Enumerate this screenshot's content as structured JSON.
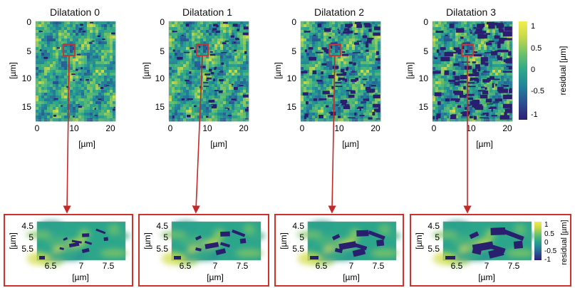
{
  "figure": {
    "colorbar_label": "residual [µm]",
    "colors": {
      "zoom_box": "#d0312d",
      "arrow": "#c62828",
      "colormap": [
        "#2d1e74",
        "#2c4f91",
        "#23839a",
        "#2ca68b",
        "#6cc16b",
        "#c7d84a",
        "#f2ec4f"
      ]
    }
  },
  "chart_data": [
    {
      "type": "heatmap",
      "panel": "overview",
      "title": "Dilatation 0",
      "xlabel": "[µm]",
      "ylabel": "[µm]",
      "xlim": [
        0,
        22
      ],
      "ylim": [
        17,
        0
      ],
      "xticks": [
        "0",
        "10",
        "20"
      ],
      "yticks": [
        "0",
        "5",
        "10",
        "15"
      ],
      "clim": [
        -1,
        1
      ],
      "zoom_box": {
        "x": [
          6.3,
          7.9
        ],
        "y": [
          4.4,
          6.0
        ]
      },
      "mask_density": 0.05
    },
    {
      "type": "heatmap",
      "panel": "overview",
      "title": "Dilatation 1",
      "xlabel": "[µm]",
      "ylabel": "[µm]",
      "xlim": [
        0,
        22
      ],
      "ylim": [
        17,
        0
      ],
      "xticks": [
        "0",
        "10",
        "20"
      ],
      "yticks": [
        "0",
        "5",
        "10",
        "15"
      ],
      "clim": [
        -1,
        1
      ],
      "zoom_box": {
        "x": [
          6.3,
          7.9
        ],
        "y": [
          4.4,
          6.0
        ]
      },
      "mask_density": 0.1
    },
    {
      "type": "heatmap",
      "panel": "overview",
      "title": "Dilatation 2",
      "xlabel": "[µm]",
      "ylabel": "[µm]",
      "xlim": [
        0,
        22
      ],
      "ylim": [
        17,
        0
      ],
      "xticks": [
        "0",
        "10",
        "20"
      ],
      "yticks": [
        "0",
        "5",
        "10",
        "15"
      ],
      "clim": [
        -1,
        1
      ],
      "zoom_box": {
        "x": [
          6.3,
          7.9
        ],
        "y": [
          4.4,
          6.0
        ]
      },
      "mask_density": 0.17
    },
    {
      "type": "heatmap",
      "panel": "overview",
      "title": "Dilatation 3",
      "xlabel": "[µm]",
      "ylabel": "[µm]",
      "xlim": [
        0,
        22
      ],
      "ylim": [
        17,
        0
      ],
      "xticks": [
        "0",
        "10",
        "20"
      ],
      "yticks": [
        "0",
        "5",
        "10",
        "15"
      ],
      "clim": [
        -1,
        1
      ],
      "zoom_box": {
        "x": [
          6.3,
          7.9
        ],
        "y": [
          4.4,
          6.0
        ]
      },
      "mask_density": 0.25,
      "colorbar": {
        "ticks": [
          "1",
          "0.5",
          "0",
          "-0.5",
          "-1"
        ],
        "label": "residual [µm]"
      }
    },
    {
      "type": "heatmap",
      "panel": "zoom",
      "xlabel": "[µm]",
      "ylabel": "[µm]",
      "xlim": [
        6.3,
        7.9
      ],
      "ylim": [
        6.0,
        4.4
      ],
      "xticks": [
        "6.5",
        "7",
        "7.5"
      ],
      "yticks": [
        "4.5",
        "5",
        "5.5"
      ],
      "clim": [
        -1,
        1
      ]
    },
    {
      "type": "heatmap",
      "panel": "zoom",
      "xlabel": "[µm]",
      "ylabel": "[µm]",
      "xlim": [
        6.3,
        7.9
      ],
      "ylim": [
        6.0,
        4.4
      ],
      "xticks": [
        "6.5",
        "7",
        "7.5"
      ],
      "yticks": [
        "4.5",
        "5",
        "5.5"
      ],
      "clim": [
        -1,
        1
      ]
    },
    {
      "type": "heatmap",
      "panel": "zoom",
      "xlabel": "[µm]",
      "ylabel": "[µm]",
      "xlim": [
        6.3,
        7.9
      ],
      "ylim": [
        6.0,
        4.4
      ],
      "xticks": [
        "6.5",
        "7",
        "7.5"
      ],
      "yticks": [
        "4.5",
        "5",
        "5.5"
      ],
      "clim": [
        -1,
        1
      ]
    },
    {
      "type": "heatmap",
      "panel": "zoom",
      "xlabel": "[µm]",
      "ylabel": "[µm]",
      "xlim": [
        6.3,
        7.9
      ],
      "ylim": [
        6.0,
        4.4
      ],
      "xticks": [
        "6.5",
        "7",
        "7.5"
      ],
      "yticks": [
        "4.5",
        "5",
        "5.5"
      ],
      "clim": [
        -1,
        1
      ],
      "colorbar": {
        "ticks": [
          "1",
          "0.5",
          "0",
          "-0.5",
          "-1"
        ],
        "label": "residual [µm]"
      }
    }
  ]
}
